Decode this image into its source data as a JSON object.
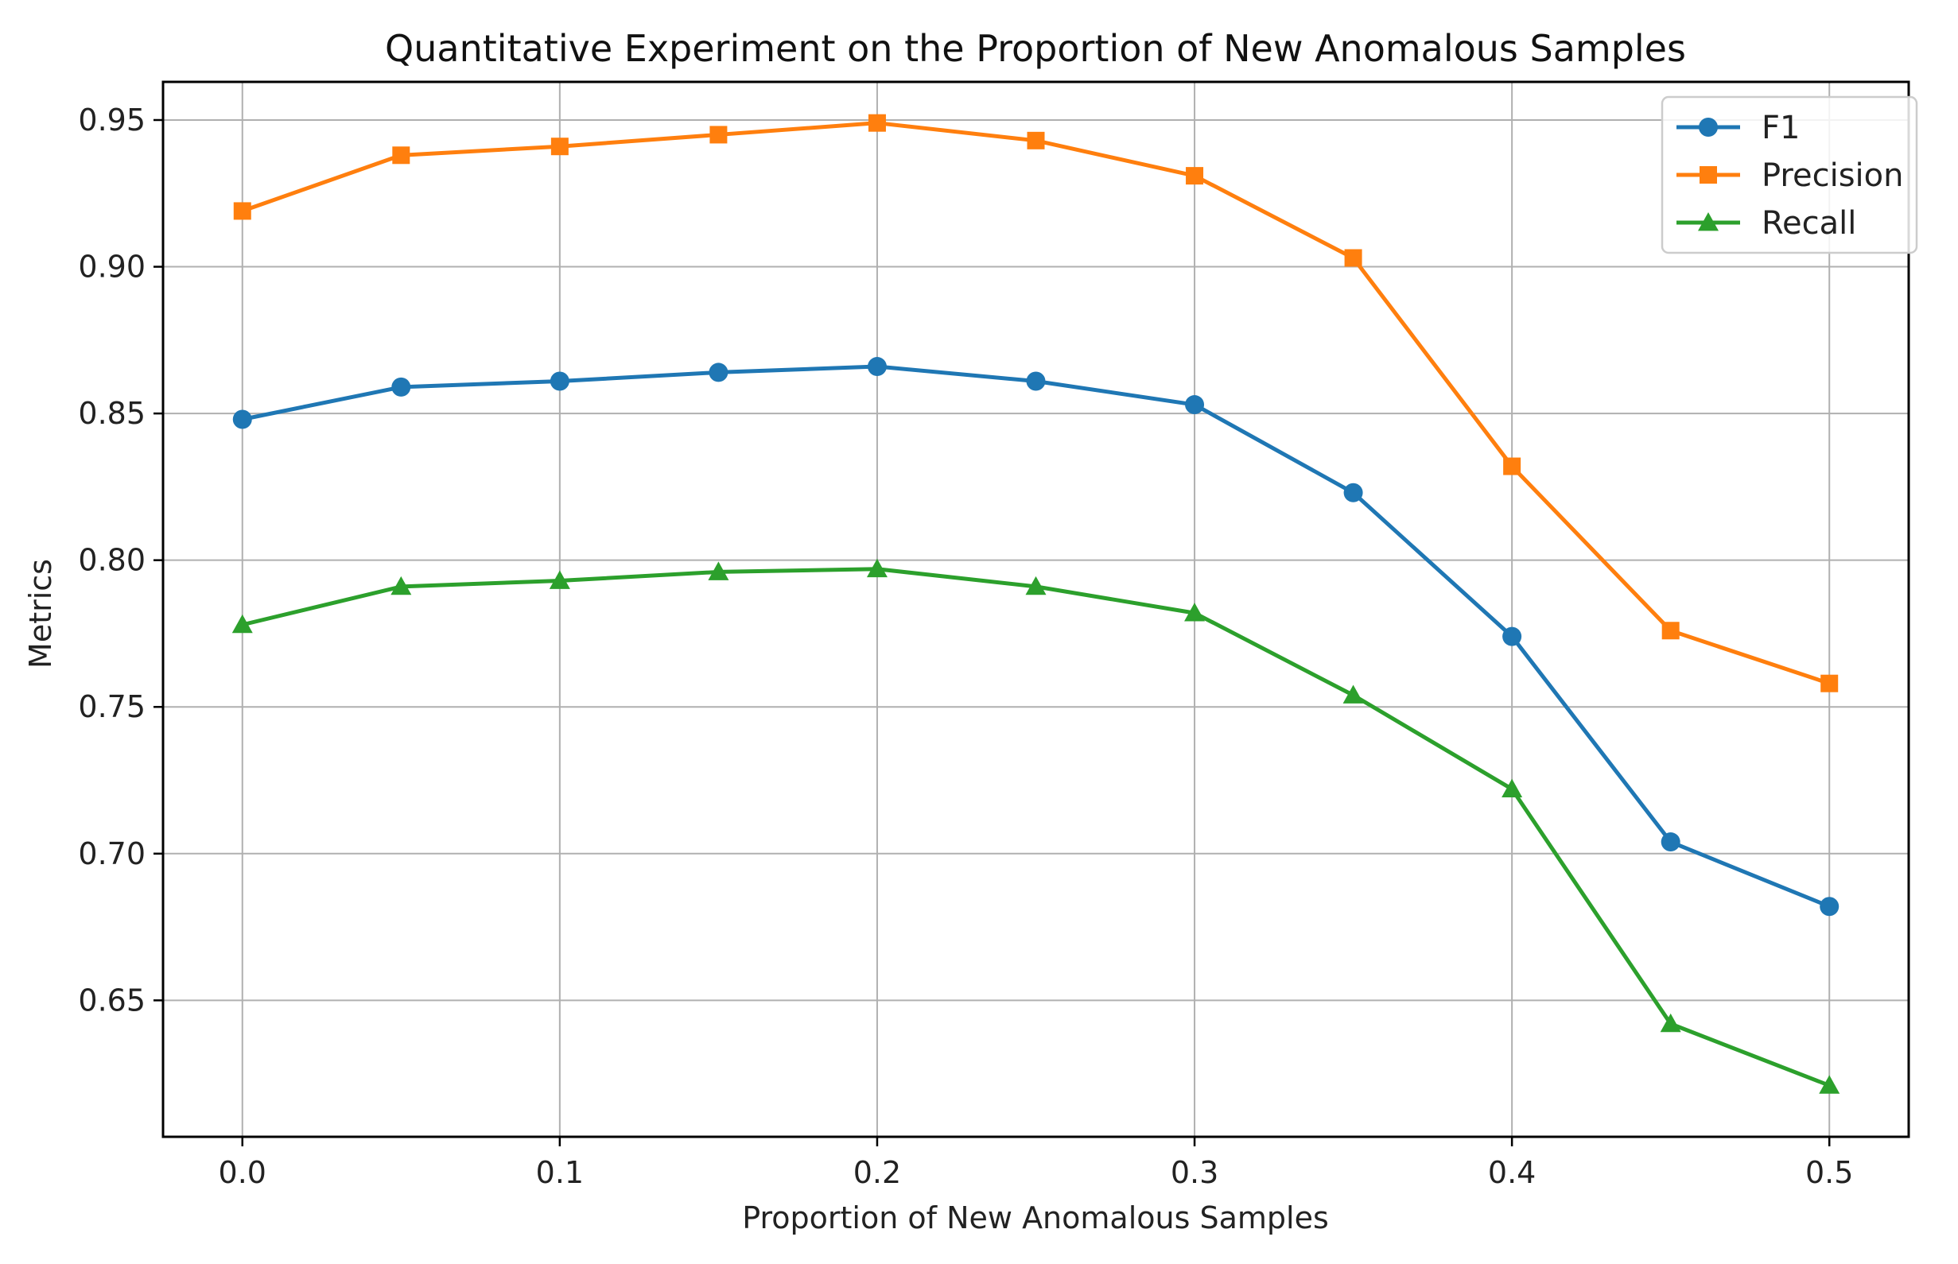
{
  "chart_data": {
    "type": "line",
    "title": "Quantitative Experiment on the Proportion of New Anomalous Samples",
    "xlabel": "Proportion of New Anomalous Samples",
    "ylabel": "Metrics",
    "x": [
      0.0,
      0.05,
      0.1,
      0.15,
      0.2,
      0.25,
      0.3,
      0.35,
      0.4,
      0.45,
      0.5
    ],
    "xticks": [
      0.0,
      0.1,
      0.2,
      0.3,
      0.4,
      0.5
    ],
    "xtick_labels": [
      "0.0",
      "0.1",
      "0.2",
      "0.3",
      "0.4",
      "0.5"
    ],
    "yticks": [
      0.65,
      0.7,
      0.75,
      0.8,
      0.85,
      0.9,
      0.95
    ],
    "ytick_labels": [
      "0.65",
      "0.70",
      "0.75",
      "0.80",
      "0.85",
      "0.90",
      "0.95"
    ],
    "xlim": [
      -0.025,
      0.525
    ],
    "ylim": [
      0.6035,
      0.963
    ],
    "grid": true,
    "legend_position": "top-right",
    "series": [
      {
        "name": "F1",
        "color": "#1f77b4",
        "marker": "circle",
        "values": [
          0.848,
          0.859,
          0.861,
          0.864,
          0.866,
          0.861,
          0.853,
          0.823,
          0.774,
          0.704,
          0.682
        ]
      },
      {
        "name": "Precision",
        "color": "#ff7f0e",
        "marker": "square",
        "values": [
          0.919,
          0.938,
          0.941,
          0.945,
          0.949,
          0.943,
          0.931,
          0.903,
          0.832,
          0.776,
          0.758
        ]
      },
      {
        "name": "Recall",
        "color": "#2ca02c",
        "marker": "triangle",
        "values": [
          0.778,
          0.791,
          0.793,
          0.796,
          0.797,
          0.791,
          0.782,
          0.754,
          0.722,
          0.642,
          0.621
        ]
      }
    ]
  }
}
